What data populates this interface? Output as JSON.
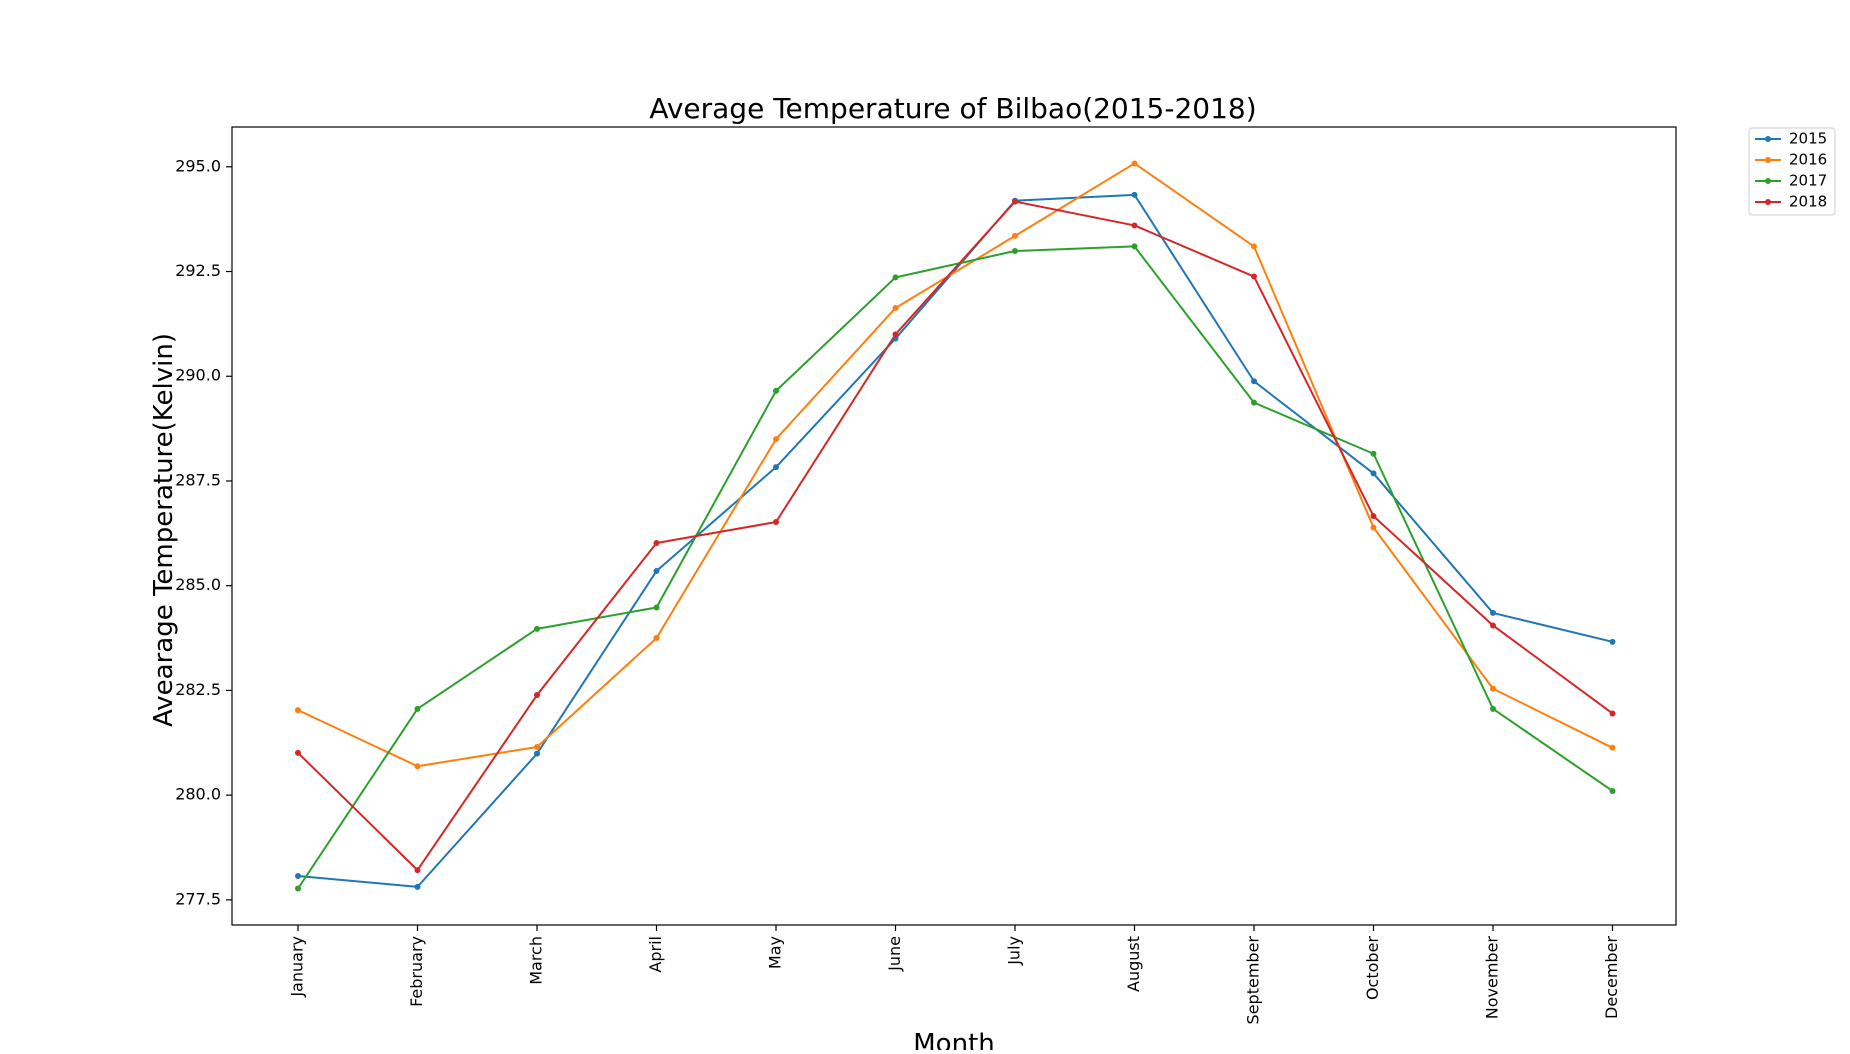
{
  "chart_data": {
    "type": "line",
    "title": "Average Temperature of Bilbao(2015-2018)",
    "xlabel": "Month",
    "ylabel": "Avearage Temperature(Kelvin)",
    "categories": [
      "January",
      "February",
      "March",
      "April",
      "May",
      "June",
      "July",
      "August",
      "September",
      "October",
      "November",
      "December"
    ],
    "yticks": [
      "277.5",
      "280.0",
      "282.5",
      "285.0",
      "287.5",
      "290.0",
      "292.5",
      "295.0"
    ],
    "ylim": [
      276.9,
      295.95
    ],
    "grid": false,
    "legend_position": "outside-top-right",
    "series": [
      {
        "name": "2015",
        "color": "#1f77b4",
        "values": [
          278.07,
          277.81,
          280.99,
          285.35,
          287.83,
          290.9,
          294.19,
          294.33,
          289.88,
          287.68,
          284.35,
          283.66
        ]
      },
      {
        "name": "2016",
        "color": "#ff7f0e",
        "values": [
          282.03,
          280.69,
          281.15,
          283.75,
          288.5,
          291.63,
          293.35,
          295.08,
          293.1,
          286.39,
          282.54,
          281.13
        ]
      },
      {
        "name": "2017",
        "color": "#2ca02c",
        "values": [
          277.77,
          282.06,
          283.97,
          284.48,
          289.65,
          292.36,
          292.99,
          293.1,
          289.37,
          288.15,
          282.06,
          280.1
        ]
      },
      {
        "name": "2018",
        "color": "#d62728",
        "values": [
          281.01,
          278.21,
          282.39,
          286.02,
          286.52,
          291.0,
          294.17,
          293.6,
          292.38,
          286.66,
          284.05,
          281.95
        ]
      }
    ]
  }
}
